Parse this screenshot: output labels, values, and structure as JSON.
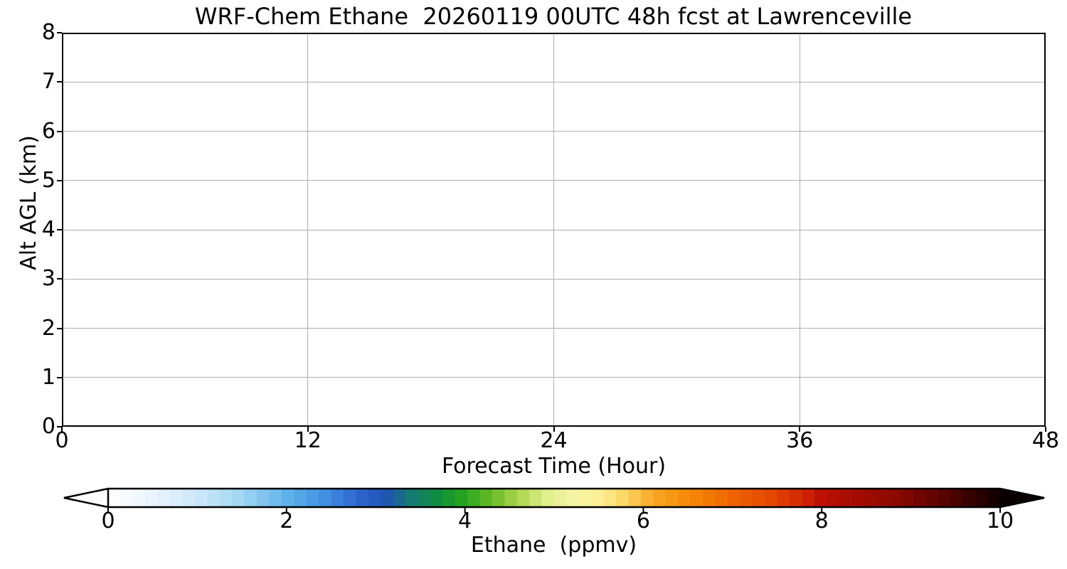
{
  "title": "WRF-Chem Ethane  20260119 00UTC 48h fcst at Lawrenceville",
  "chart_data": {
    "type": "heatmap",
    "title": "WRF-Chem Ethane  20260119 00UTC 48h fcst at Lawrenceville",
    "xlabel": "Forecast Time (Hour)",
    "ylabel": "Alt AGL (km)",
    "xlim": [
      0,
      48
    ],
    "ylim": [
      0,
      8
    ],
    "x_ticks": [
      0,
      12,
      24,
      36,
      48
    ],
    "y_ticks": [
      0,
      1,
      2,
      3,
      4,
      5,
      6,
      7,
      8
    ],
    "grid": true,
    "grid_color": "#b0b0b0",
    "field_values": "uniform white across entire plot area (field at/below colormap minimum of 0 ppmv; no contour features visible)",
    "colorbar": {
      "label": "Ethane  (ppmv)",
      "ticks": [
        0,
        2,
        4,
        6,
        8,
        10
      ],
      "range": [
        0,
        10
      ],
      "orientation": "horizontal",
      "extend": "both",
      "extend_under_color": "#ffffff",
      "extend_over_color": "#0a0000",
      "segments": 72,
      "stops": [
        [
          0.0,
          "#ffffff"
        ],
        [
          0.5,
          "#eaf4fc"
        ],
        [
          1.0,
          "#cde8fa"
        ],
        [
          1.5,
          "#9fd6f4"
        ],
        [
          2.0,
          "#5fb3ea"
        ],
        [
          2.4,
          "#4292e2"
        ],
        [
          2.8,
          "#2e66cf"
        ],
        [
          3.1,
          "#2053b4"
        ],
        [
          3.4,
          "#157a70"
        ],
        [
          3.7,
          "#0f8f3e"
        ],
        [
          4.0,
          "#2aa51c"
        ],
        [
          4.3,
          "#67bb28"
        ],
        [
          4.6,
          "#abd54c"
        ],
        [
          4.9,
          "#e0ee8a"
        ],
        [
          5.2,
          "#f4f4a6"
        ],
        [
          5.5,
          "#fdef94"
        ],
        [
          5.8,
          "#fcd763"
        ],
        [
          6.1,
          "#f9a825"
        ],
        [
          6.5,
          "#f58a08"
        ],
        [
          7.0,
          "#ee6400"
        ],
        [
          7.4,
          "#e64a00"
        ],
        [
          7.8,
          "#d02405"
        ],
        [
          8.0,
          "#bd1005"
        ],
        [
          8.4,
          "#a30b00"
        ],
        [
          8.8,
          "#8c0a00"
        ],
        [
          9.2,
          "#680500"
        ],
        [
          9.6,
          "#3e0200"
        ],
        [
          10.0,
          "#0d0000"
        ]
      ]
    }
  },
  "colors": {
    "background": "#ffffff",
    "frame": "#000000",
    "grid": "#b0b0b0",
    "text": "#000000"
  }
}
